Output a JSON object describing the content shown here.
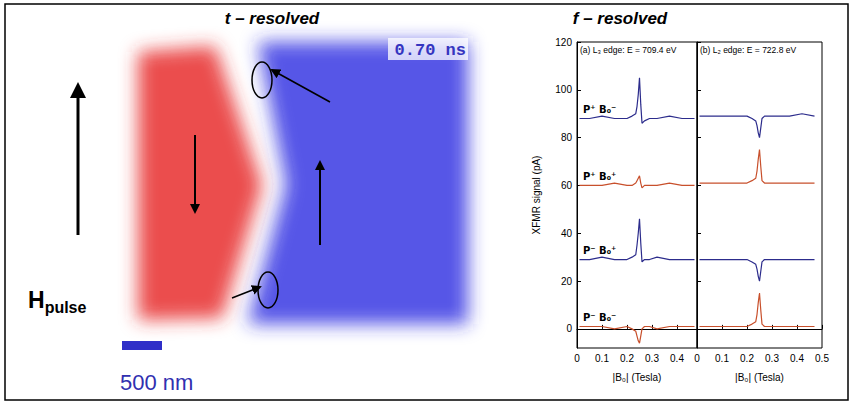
{
  "figure": {
    "t_resolved": {
      "title": "t – resolved",
      "time_label": "0.70 ns",
      "field_label": "H",
      "field_label_subscript": "pulse",
      "scale_bar_label": "500 nm"
    },
    "f_resolved": {
      "title": "f – resolved"
    }
  },
  "chart_data": [
    {
      "type": "line",
      "title": "(a) L₃ edge: E = 709.4 eV",
      "x_label": "|B₀| (Tesla)",
      "y_label": "XFMR signal (pA)",
      "xlim": [
        0,
        0.48
      ],
      "xticks": [
        0,
        0.1,
        0.2,
        0.3,
        0.4
      ],
      "ylim": [
        -8,
        120
      ],
      "yticks": [
        0,
        20,
        40,
        60,
        80,
        100,
        120
      ],
      "grid": false,
      "x": [
        0.01,
        0.05,
        0.1,
        0.15,
        0.2,
        0.22,
        0.235,
        0.24,
        0.245,
        0.25,
        0.255,
        0.26,
        0.27,
        0.29,
        0.32,
        0.37,
        0.42,
        0.47
      ],
      "series": [
        {
          "name": "P⁺ B₀⁻",
          "color": "#2c2c8c",
          "values": [
            88,
            88,
            89,
            88,
            88,
            89,
            90,
            93,
            98,
            105,
            94,
            86,
            87,
            88,
            88,
            89,
            88,
            88
          ]
        },
        {
          "name": "P⁺ B₀⁺",
          "color": "#c8502c",
          "values": [
            60,
            60,
            60,
            61,
            60,
            60,
            61,
            62,
            63,
            64,
            61,
            59,
            60,
            60,
            60,
            61,
            60,
            60
          ]
        },
        {
          "name": "P⁻ B₀⁺",
          "color": "#2c2c8c",
          "values": [
            29,
            29,
            30,
            29,
            29,
            30,
            31,
            35,
            40,
            46,
            36,
            28,
            29,
            29,
            30,
            29,
            29,
            29
          ]
        },
        {
          "name": "P⁻ B₀⁻",
          "color": "#c8502c",
          "values": [
            1,
            1,
            1,
            0,
            1,
            0,
            -1,
            -3,
            -5,
            -6,
            -3,
            0,
            1,
            1,
            0,
            1,
            1,
            1
          ]
        }
      ]
    },
    {
      "type": "line",
      "title": "(b) L₂ edge: E = 722.8 eV",
      "x_label": "|B₀| (Tesla)",
      "xlim": [
        0,
        0.5
      ],
      "xticks": [
        0,
        0.1,
        0.2,
        0.3,
        0.4,
        0.5
      ],
      "ylim": [
        -8,
        120
      ],
      "yticks": [
        0,
        20,
        40,
        60,
        80,
        100,
        120
      ],
      "grid": false,
      "tick_labels": "x",
      "x": [
        0.01,
        0.05,
        0.1,
        0.15,
        0.2,
        0.22,
        0.235,
        0.24,
        0.245,
        0.25,
        0.255,
        0.26,
        0.27,
        0.29,
        0.32,
        0.37,
        0.42,
        0.47
      ],
      "series": [
        {
          "color": "#2c2c8c",
          "values": [
            89,
            89,
            89,
            89,
            89,
            88,
            87,
            85,
            82,
            80,
            84,
            88,
            89,
            89,
            89,
            89,
            90,
            89
          ]
        },
        {
          "color": "#c8502c",
          "values": [
            61,
            61,
            61,
            61,
            61,
            62,
            63,
            66,
            71,
            75,
            68,
            62,
            61,
            61,
            61,
            61,
            61,
            61
          ]
        },
        {
          "color": "#2c2c8c",
          "values": [
            29,
            29,
            29,
            29,
            29,
            28,
            27,
            25,
            22,
            20,
            24,
            28,
            29,
            29,
            29,
            29,
            29,
            29
          ]
        },
        {
          "color": "#c8502c",
          "values": [
            1,
            1,
            1,
            1,
            1,
            2,
            3,
            6,
            11,
            15,
            8,
            2,
            1,
            1,
            1,
            1,
            1,
            1
          ]
        }
      ]
    }
  ]
}
